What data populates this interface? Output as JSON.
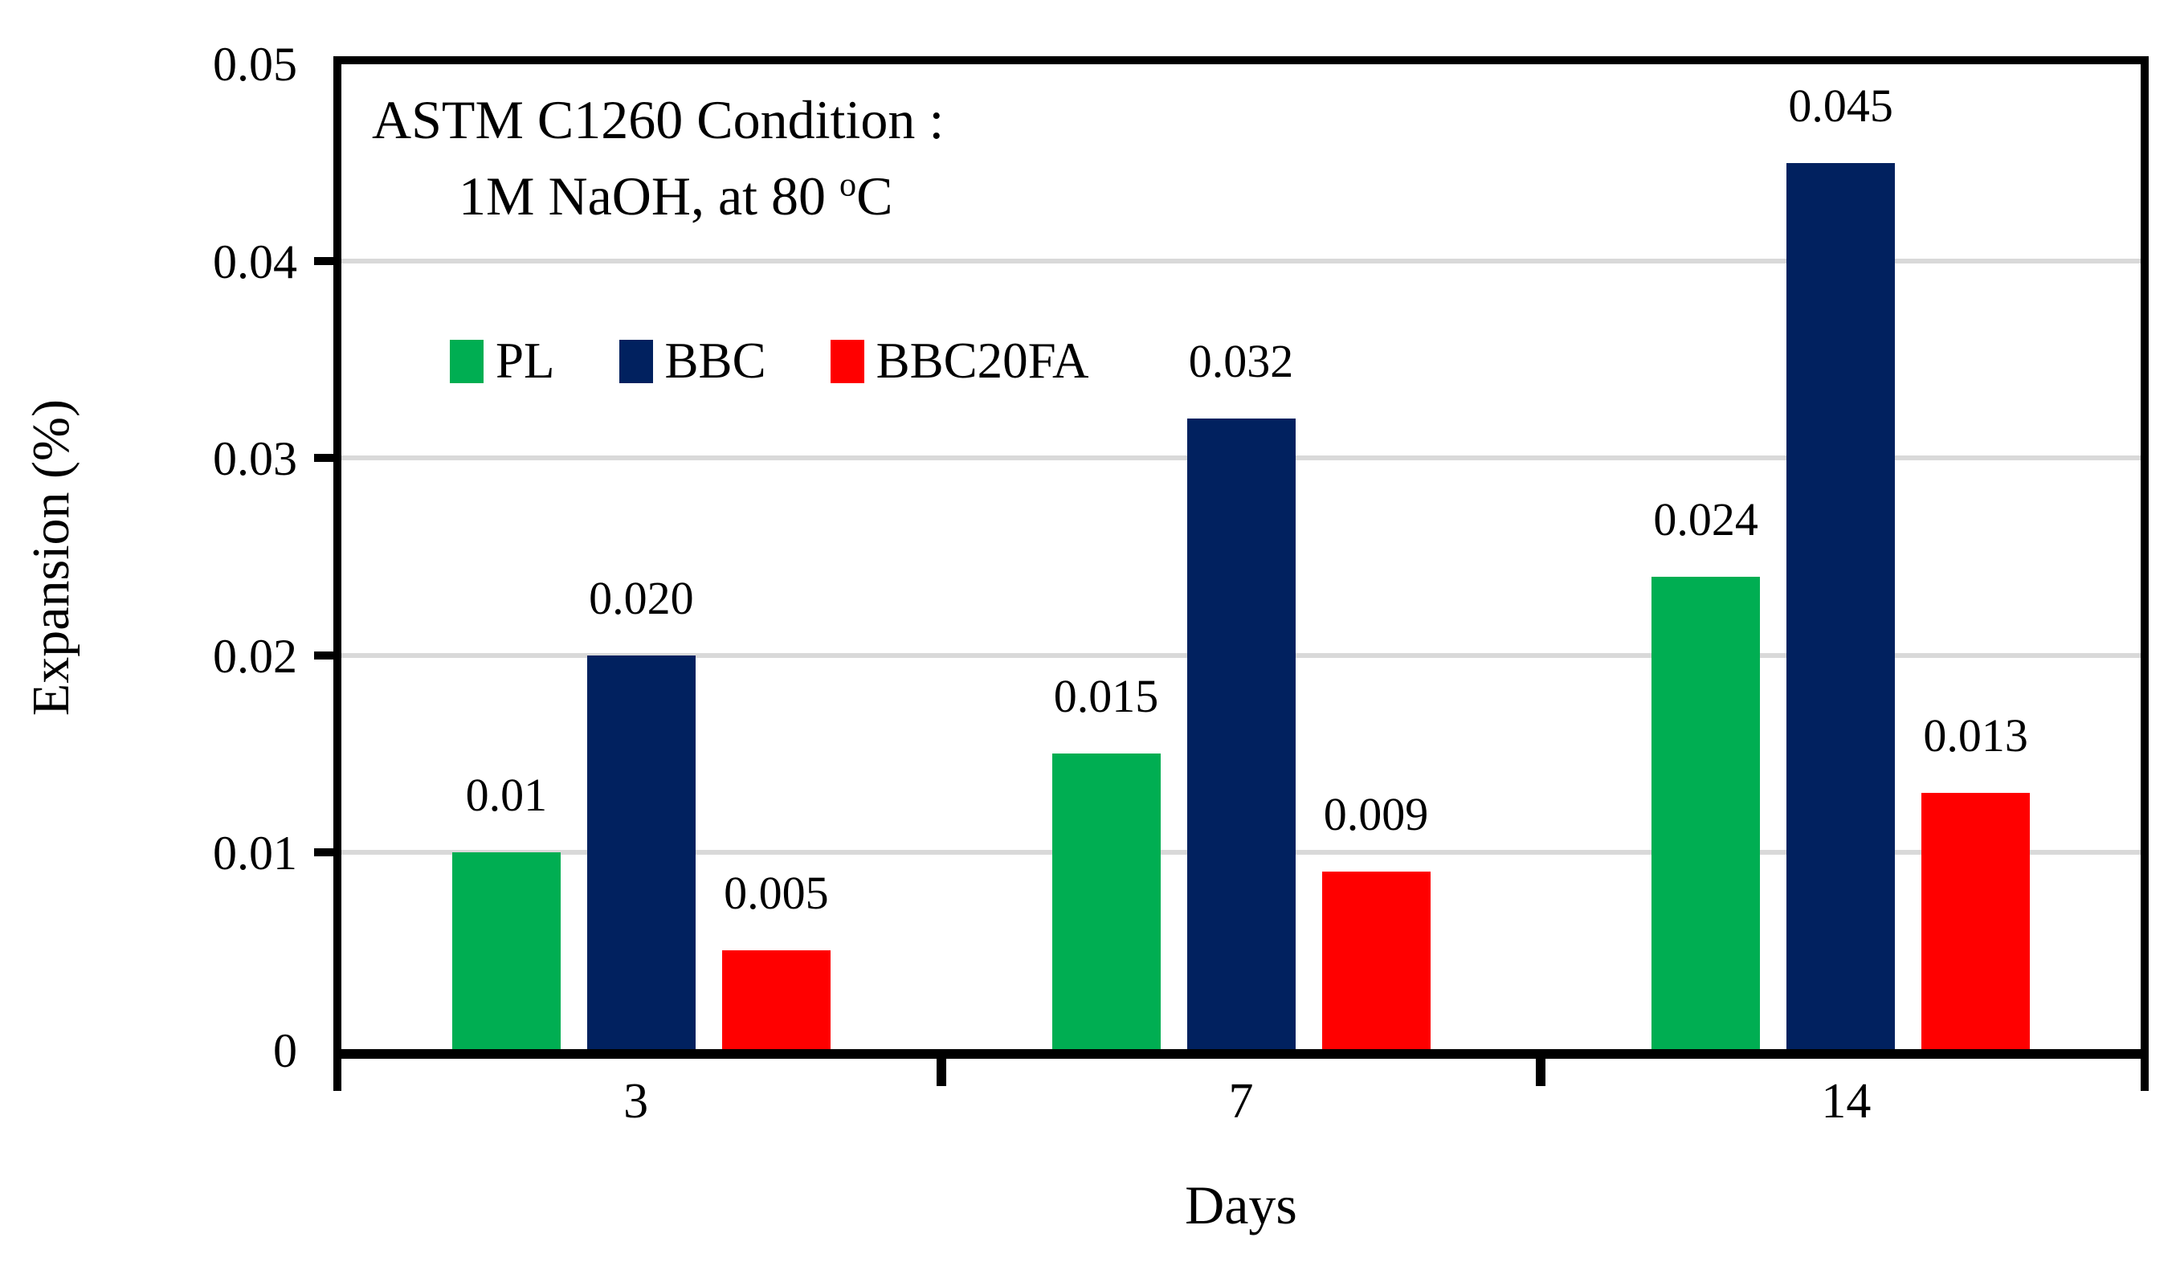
{
  "chart_data": {
    "type": "bar",
    "annotation": {
      "line1": "ASTM C1260 Condition :",
      "line2_pre": "1M NaOH, at 80 ",
      "line2_sup": "o",
      "line2_post": "C"
    },
    "categories": [
      "3",
      "7",
      "14"
    ],
    "series": [
      {
        "name": "PL",
        "color": "#00AE52",
        "values": [
          0.01,
          0.015,
          0.024
        ],
        "labels": [
          "0.01",
          "0.015",
          "0.024"
        ]
      },
      {
        "name": "BBC",
        "color": "#01215F",
        "values": [
          0.02,
          0.032,
          0.045
        ],
        "labels": [
          "0.020",
          "0.032",
          "0.045"
        ]
      },
      {
        "name": "BBC20FA",
        "color": "#FF0000",
        "values": [
          0.005,
          0.009,
          0.013
        ],
        "labels": [
          "0.005",
          "0.009",
          "0.013"
        ]
      }
    ],
    "xlabel": "Days",
    "ylabel": "Expansion (%)",
    "y_ticks": [
      "0",
      "0.01",
      "0.02",
      "0.03",
      "0.04",
      "0.05"
    ],
    "ylim": [
      0,
      0.05
    ],
    "grid": true,
    "gridline_color": "#D9D9D9",
    "axis_color": "#000000",
    "legend_position": "inside-top-left"
  }
}
